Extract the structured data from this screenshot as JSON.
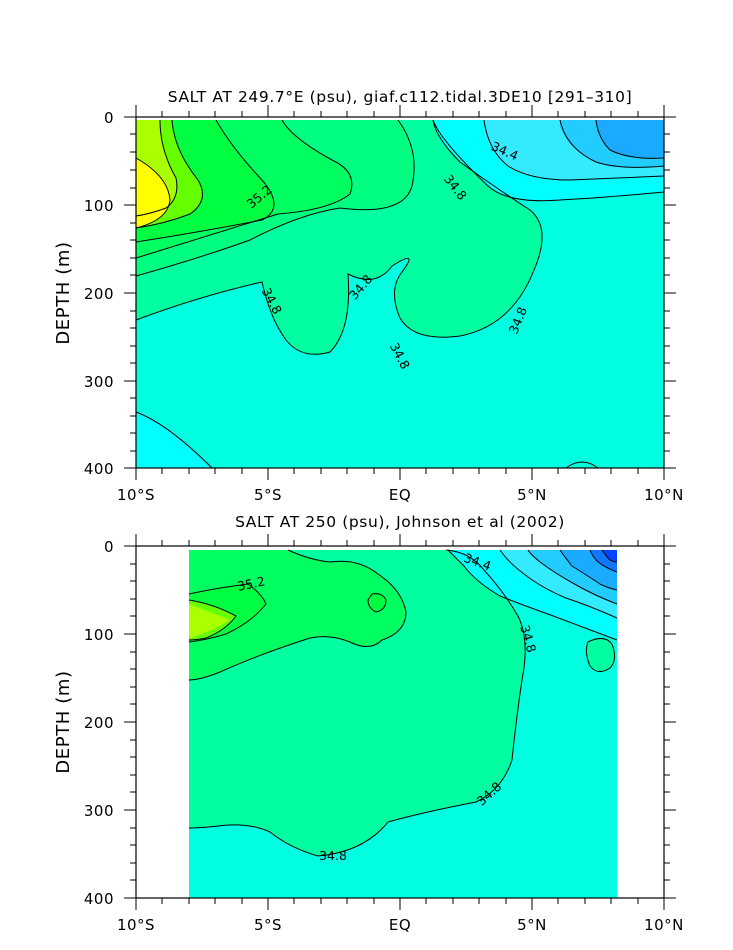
{
  "chart_data": [
    {
      "type": "contour",
      "title": "SALT AT 249.7°E (psu), giaf.c112.tidal.3DE10 [291–310]",
      "ylabel": "DEPTH (m)",
      "xlabel": "",
      "x_ticks": [
        "10°S",
        "5°S",
        "EQ",
        "5°N",
        "10°N"
      ],
      "y_ticks": [
        "0",
        "100",
        "200",
        "300",
        "400"
      ],
      "xlim": [
        -10,
        10
      ],
      "ylim": [
        400,
        0
      ],
      "data_lon_range": [
        -10,
        10
      ],
      "data_depth_range": [
        5,
        400
      ],
      "contour_labels": [
        {
          "text": "34.4",
          "lon": 4.5,
          "depth": 50
        },
        {
          "text": "35.2",
          "lon": -5,
          "depth": 92
        },
        {
          "text": "34.8",
          "lon": 1.4,
          "depth": 80
        },
        {
          "text": "34.8",
          "lon": -5,
          "depth": 238
        },
        {
          "text": "34.8",
          "lon": -1.4,
          "depth": 208
        },
        {
          "text": "34.8",
          "lon": -0.1,
          "depth": 296
        },
        {
          "text": "34.8",
          "lon": 4.8,
          "depth": 258
        }
      ],
      "colors": {
        "high": "#ffff00",
        "mid": "#00ff88",
        "low": "#0055ff"
      }
    },
    {
      "type": "contour",
      "title": "SALT AT 250 (psu), Johnson et al (2002)",
      "ylabel": "DEPTH (m)",
      "xlabel": "",
      "x_ticks": [
        "10°S",
        "5°S",
        "EQ",
        "5°N",
        "10°N"
      ],
      "y_ticks": [
        "0",
        "100",
        "200",
        "300",
        "400"
      ],
      "xlim": [
        -10,
        10
      ],
      "ylim": [
        400,
        0
      ],
      "data_lon_range": [
        -8,
        8.2
      ],
      "data_depth_range": [
        5,
        400
      ],
      "contour_labels": [
        {
          "text": "35.2",
          "lon": -6,
          "depth": 35
        },
        {
          "text": "34.4",
          "lon": 2.8,
          "depth": 18
        },
        {
          "text": "34.8",
          "lon": 4.8,
          "depth": 108
        },
        {
          "text": "34.8",
          "lon": 3.4,
          "depth": 290
        },
        {
          "text": "34.8",
          "lon": -2.7,
          "depth": 352
        }
      ],
      "colors": {
        "high": "#ffff00",
        "mid": "#00ff88",
        "low": "#0055ff"
      }
    }
  ]
}
